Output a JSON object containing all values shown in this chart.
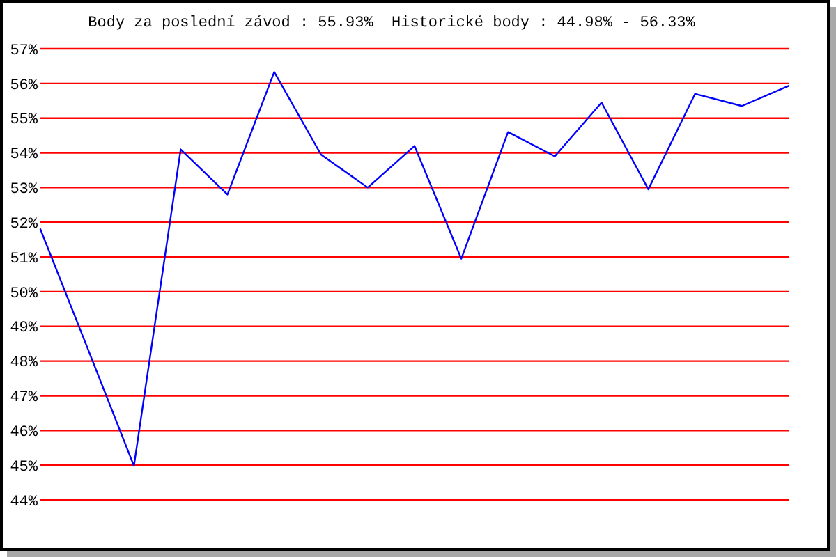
{
  "chart_data": {
    "type": "line",
    "title": "Body za poslední závod : 55.93%  Historické body : 44.98% - 56.33%",
    "categories": [
      null,
      null,
      null,
      null,
      null,
      null,
      null,
      null,
      null,
      null,
      null,
      null,
      null,
      null,
      null,
      null,
      null
    ],
    "values": [
      51.8,
      48.4,
      44.98,
      54.1,
      52.8,
      56.33,
      53.95,
      53.0,
      54.2,
      50.95,
      54.6,
      53.9,
      55.45,
      52.95,
      55.7,
      55.35,
      55.93
    ],
    "color": "#0000ff",
    "ylim": [
      44,
      57
    ],
    "yticks": [
      {
        "value": 44,
        "label": "44%"
      },
      {
        "value": 45,
        "label": "45%"
      },
      {
        "value": 46,
        "label": "46%"
      },
      {
        "value": 47,
        "label": "47%"
      },
      {
        "value": 48,
        "label": "48%"
      },
      {
        "value": 49,
        "label": "49%"
      },
      {
        "value": 50,
        "label": "50%"
      },
      {
        "value": 51,
        "label": "51%"
      },
      {
        "value": 52,
        "label": "52%"
      },
      {
        "value": 53,
        "label": "53%"
      },
      {
        "value": 54,
        "label": "54%"
      },
      {
        "value": 55,
        "label": "55%"
      },
      {
        "value": 56,
        "label": "56%"
      },
      {
        "value": 57,
        "label": "57%"
      }
    ],
    "grid": "y",
    "tick_labels": "y"
  }
}
